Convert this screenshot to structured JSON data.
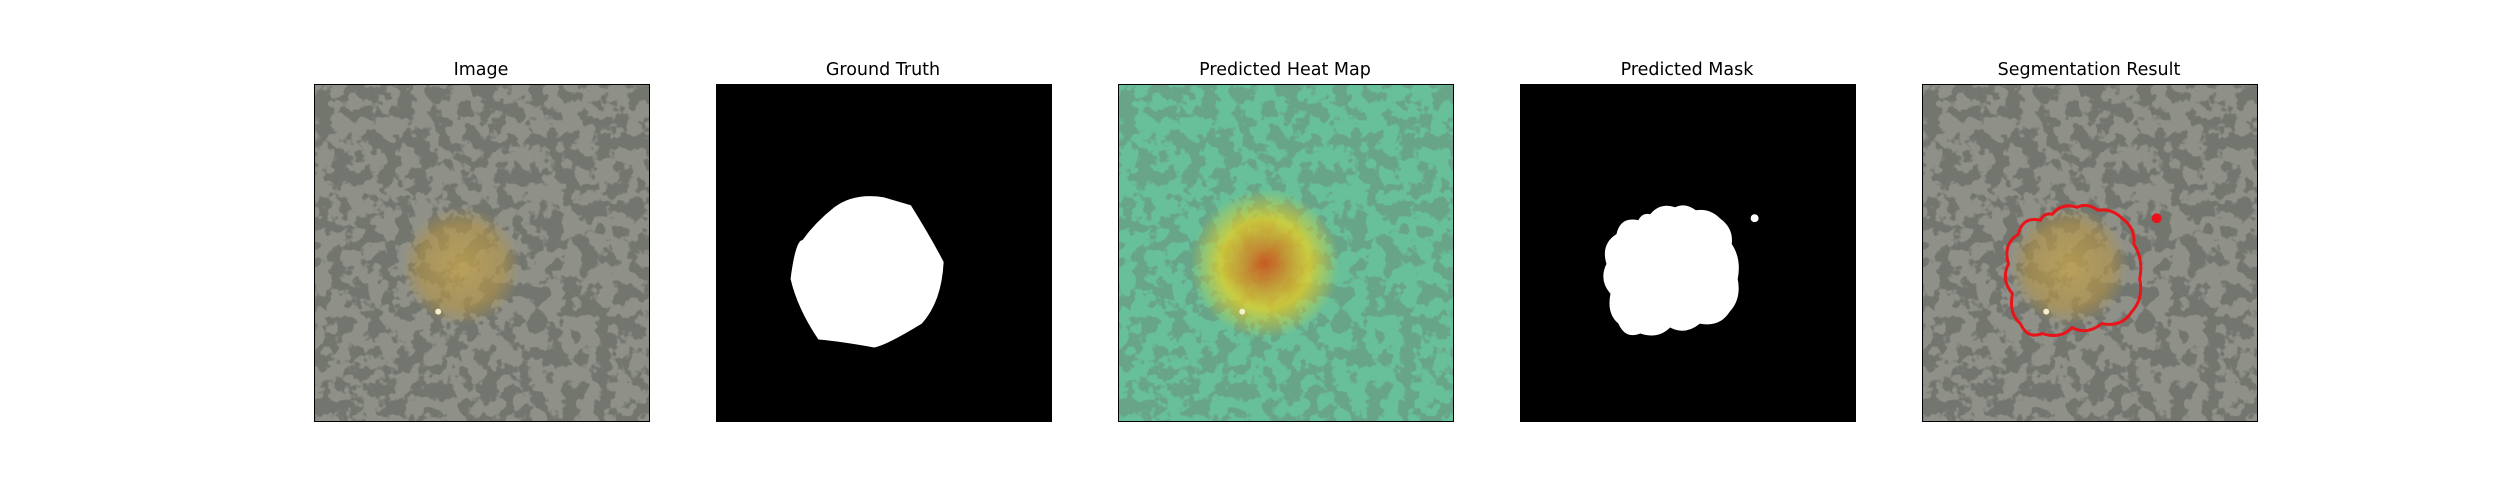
{
  "figure": {
    "panels": [
      {
        "id": "image",
        "title": "Image"
      },
      {
        "id": "ground_truth",
        "title": "Ground Truth"
      },
      {
        "id": "heat_map",
        "title": "Predicted Heat Map"
      },
      {
        "id": "mask",
        "title": "Predicted Mask"
      },
      {
        "id": "segmentation",
        "title": "Segmentation Result"
      }
    ],
    "colors": {
      "texture_base": "#8f9189",
      "texture_spot": "#2e2f2b",
      "defect_tint": "#c6a24a",
      "heatmap_cool": "#4fd79c",
      "heatmap_hot": "#f2d21c",
      "heatmap_core": "#d64a10",
      "mask_fg": "#ffffff",
      "mask_bg": "#000000",
      "contour": "#e8141a"
    }
  }
}
